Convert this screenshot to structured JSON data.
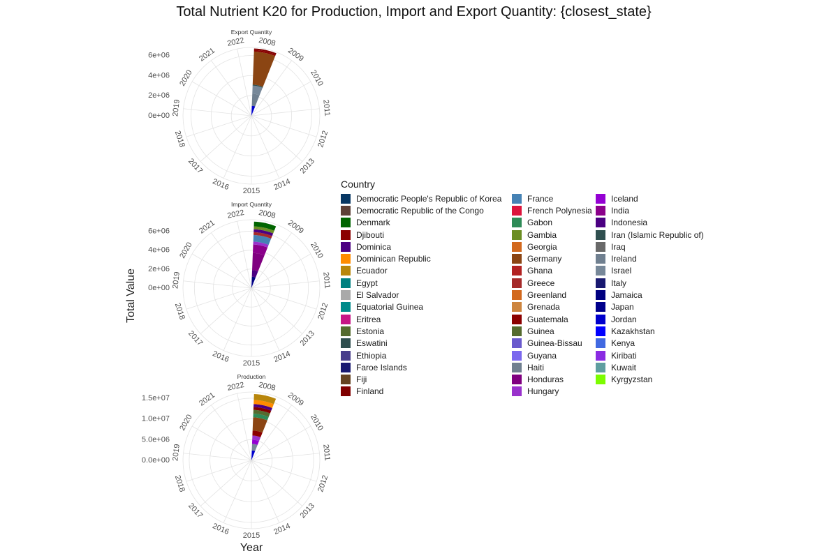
{
  "chart_data": {
    "type": "bar",
    "coord": "polar",
    "title": "Total Nutrient K20 for Production, Import and Export Quantity: {closest_state}",
    "xlabel": "Year",
    "ylabel": "Total Value",
    "legend_title": "Country",
    "legend_position": "right",
    "x_categories": [
      "2008",
      "2009",
      "2010",
      "2011",
      "2012",
      "2013",
      "2014",
      "2015",
      "2016",
      "2017",
      "2018",
      "2019",
      "2020",
      "2021",
      "2022"
    ],
    "panels": [
      {
        "name": "Export Quantity",
        "y_ticks": [
          "0e+00",
          "2e+06",
          "4e+06",
          "6e+06"
        ],
        "y_tick_values": [
          0,
          2000000,
          4000000,
          6000000
        ],
        "ylim": [
          0,
          6800000
        ],
        "bar": {
          "year": "2008",
          "total": 6700000,
          "stack": [
            {
              "country": "Jordan",
              "value": 1000000,
              "color": "#0000CD"
            },
            {
              "country": "Ireland",
              "value": 1200000,
              "color": "#708090"
            },
            {
              "country": "Israel",
              "value": 800000,
              "color": "#778899"
            },
            {
              "country": "Iran (Islamic Republic of)",
              "value": 100000,
              "color": "#2F4F4F"
            },
            {
              "country": "Germany",
              "value": 3300000,
              "color": "#8B4513"
            },
            {
              "country": "Guatemala",
              "value": 150000,
              "color": "#8B0000"
            },
            {
              "country": "Finland",
              "value": 150000,
              "color": "#800000"
            }
          ]
        }
      },
      {
        "name": "Import Quantity",
        "y_ticks": [
          "0e+00",
          "2e+06",
          "4e+06",
          "6e+06"
        ],
        "y_tick_values": [
          0,
          2000000,
          4000000,
          6000000
        ],
        "ylim": [
          0,
          7200000
        ],
        "bar": {
          "year": "2008",
          "total": 7000000,
          "stack": [
            {
              "country": "Japan",
              "value": 600000,
              "color": "#00008B"
            },
            {
              "country": "Jamaica",
              "value": 600000,
              "color": "#000080"
            },
            {
              "country": "Indonesia",
              "value": 700000,
              "color": "#4B0082"
            },
            {
              "country": "Honduras",
              "value": 1800000,
              "color": "#800080"
            },
            {
              "country": "India",
              "value": 900000,
              "color": "#8B008B"
            },
            {
              "country": "Hungary",
              "value": 300000,
              "color": "#9932CC"
            },
            {
              "country": "France",
              "value": 700000,
              "color": "#4682B4"
            },
            {
              "country": "Greece",
              "value": 300000,
              "color": "#A52A2A"
            },
            {
              "country": "Dominica",
              "value": 300000,
              "color": "#4B0082"
            },
            {
              "country": "Gambia",
              "value": 300000,
              "color": "#6B8E23"
            },
            {
              "country": "Denmark",
              "value": 500000,
              "color": "#006400"
            }
          ]
        }
      },
      {
        "name": "Production",
        "y_ticks": [
          "0.0e+00",
          "5.0e+06",
          "1.0e+07",
          "1.5e+07"
        ],
        "y_tick_values": [
          0,
          5000000,
          10000000,
          15000000
        ],
        "ylim": [
          0,
          16500000
        ],
        "bar": {
          "year": "2008",
          "total": 16000000,
          "stack": [
            {
              "country": "Jordan",
              "value": 2400000,
              "color": "#0000CD"
            },
            {
              "country": "Israel",
              "value": 1600000,
              "color": "#778899"
            },
            {
              "country": "Iceland",
              "value": 1000000,
              "color": "#9400D3"
            },
            {
              "country": "Hungary",
              "value": 1000000,
              "color": "#9932CC"
            },
            {
              "country": "Guatemala",
              "value": 1200000,
              "color": "#8B0000"
            },
            {
              "country": "Germany",
              "value": 3200000,
              "color": "#8B4513"
            },
            {
              "country": "Gabon",
              "value": 900000,
              "color": "#2E8B57"
            },
            {
              "country": "Estonia",
              "value": 900000,
              "color": "#556B2F"
            },
            {
              "country": "Finland",
              "value": 700000,
              "color": "#800000"
            },
            {
              "country": "Dominica",
              "value": 700000,
              "color": "#4B0082"
            },
            {
              "country": "Dominican Republic",
              "value": 1000000,
              "color": "#FF8C00"
            },
            {
              "country": "Ecuador",
              "value": 1400000,
              "color": "#B8860B"
            }
          ]
        }
      }
    ],
    "legend": [
      {
        "label": "Democratic People's Republic of Korea",
        "color": "#073763"
      },
      {
        "label": "Democratic Republic of the Congo",
        "color": "#5D4037"
      },
      {
        "label": "Denmark",
        "color": "#006400"
      },
      {
        "label": "Djibouti",
        "color": "#8B0000"
      },
      {
        "label": "Dominica",
        "color": "#4B0082"
      },
      {
        "label": "Dominican Republic",
        "color": "#FF8C00"
      },
      {
        "label": "Ecuador",
        "color": "#B8860B"
      },
      {
        "label": "Egypt",
        "color": "#008080"
      },
      {
        "label": "El Salvador",
        "color": "#A9A9A9"
      },
      {
        "label": "Equatorial Guinea",
        "color": "#008B8B"
      },
      {
        "label": "Eritrea",
        "color": "#C71585"
      },
      {
        "label": "Estonia",
        "color": "#556B2F"
      },
      {
        "label": "Eswatini",
        "color": "#2F4F4F"
      },
      {
        "label": "Ethiopia",
        "color": "#483D8B"
      },
      {
        "label": "Faroe Islands",
        "color": "#191970"
      },
      {
        "label": "Fiji",
        "color": "#654321"
      },
      {
        "label": "Finland",
        "color": "#800000"
      },
      {
        "label": "France",
        "color": "#4682B4"
      },
      {
        "label": "French Polynesia",
        "color": "#DC143C"
      },
      {
        "label": "Gabon",
        "color": "#2E8B57"
      },
      {
        "label": "Gambia",
        "color": "#6B8E23"
      },
      {
        "label": "Georgia",
        "color": "#D2691E"
      },
      {
        "label": "Germany",
        "color": "#8B4513"
      },
      {
        "label": "Ghana",
        "color": "#B22222"
      },
      {
        "label": "Greece",
        "color": "#A52A2A"
      },
      {
        "label": "Greenland",
        "color": "#D2691E"
      },
      {
        "label": "Grenada",
        "color": "#CD853F"
      },
      {
        "label": "Guatemala",
        "color": "#8B0000"
      },
      {
        "label": "Guinea",
        "color": "#556B2F"
      },
      {
        "label": "Guinea-Bissau",
        "color": "#6A5ACD"
      },
      {
        "label": "Guyana",
        "color": "#7B68EE"
      },
      {
        "label": "Haiti",
        "color": "#708090"
      },
      {
        "label": "Honduras",
        "color": "#800080"
      },
      {
        "label": "Hungary",
        "color": "#9932CC"
      },
      {
        "label": "Iceland",
        "color": "#9400D3"
      },
      {
        "label": "India",
        "color": "#8B008B"
      },
      {
        "label": "Indonesia",
        "color": "#4B0082"
      },
      {
        "label": "Iran (Islamic Republic of)",
        "color": "#2F4F4F"
      },
      {
        "label": "Iraq",
        "color": "#696969"
      },
      {
        "label": "Ireland",
        "color": "#708090"
      },
      {
        "label": "Israel",
        "color": "#778899"
      },
      {
        "label": "Italy",
        "color": "#191970"
      },
      {
        "label": "Jamaica",
        "color": "#000080"
      },
      {
        "label": "Japan",
        "color": "#00008B"
      },
      {
        "label": "Jordan",
        "color": "#0000CD"
      },
      {
        "label": "Kazakhstan",
        "color": "#0000FF"
      },
      {
        "label": "Kenya",
        "color": "#4169E1"
      },
      {
        "label": "Kiribati",
        "color": "#8A2BE2"
      },
      {
        "label": "Kuwait",
        "color": "#5F9EA0"
      },
      {
        "label": "Kyrgyzstan",
        "color": "#7CFC00"
      }
    ]
  }
}
